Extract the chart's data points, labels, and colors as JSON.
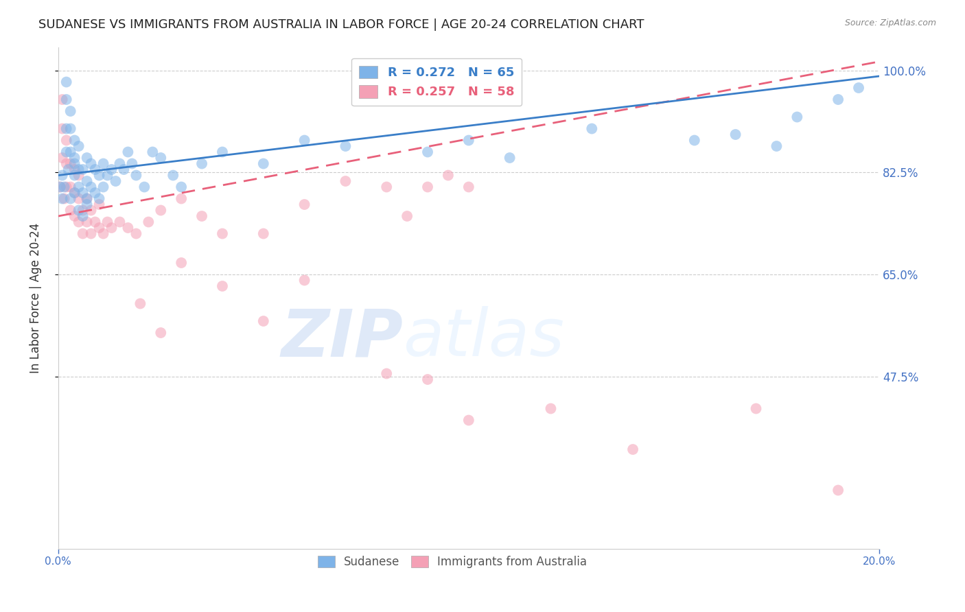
{
  "title": "SUDANESE VS IMMIGRANTS FROM AUSTRALIA IN LABOR FORCE | AGE 20-24 CORRELATION CHART",
  "source": "Source: ZipAtlas.com",
  "ylabel": "In Labor Force | Age 20-24",
  "ytick_labels": [
    "100.0%",
    "82.5%",
    "65.0%",
    "47.5%"
  ],
  "ytick_values": [
    1.0,
    0.825,
    0.65,
    0.475
  ],
  "xlim": [
    0.0,
    0.2
  ],
  "ylim": [
    0.18,
    1.04
  ],
  "blue_color": "#7EB3E8",
  "pink_color": "#F4A0B5",
  "blue_line_color": "#3A7EC8",
  "pink_line_color": "#E8607A",
  "watermark_zip": "ZIP",
  "watermark_atlas": "atlas",
  "bg_color": "#FFFFFF",
  "grid_color": "#CCCCCC",
  "title_fontsize": 13,
  "axis_label_fontsize": 12,
  "tick_fontsize": 11,
  "right_tick_color": "#4472C4",
  "bottom_tick_color": "#4472C4",
  "blue_trend_x": [
    0.0,
    0.2
  ],
  "blue_trend_y": [
    0.82,
    0.99
  ],
  "pink_trend_x": [
    0.0,
    0.2
  ],
  "pink_trend_y": [
    0.75,
    1.015
  ],
  "blue_scatter_x": [
    0.0005,
    0.001,
    0.001,
    0.0015,
    0.002,
    0.002,
    0.002,
    0.002,
    0.0025,
    0.003,
    0.003,
    0.003,
    0.003,
    0.004,
    0.004,
    0.004,
    0.004,
    0.004,
    0.005,
    0.005,
    0.005,
    0.005,
    0.006,
    0.006,
    0.006,
    0.007,
    0.007,
    0.007,
    0.007,
    0.008,
    0.008,
    0.009,
    0.009,
    0.01,
    0.01,
    0.011,
    0.011,
    0.012,
    0.013,
    0.014,
    0.015,
    0.016,
    0.017,
    0.018,
    0.019,
    0.021,
    0.023,
    0.025,
    0.028,
    0.03,
    0.035,
    0.04,
    0.05,
    0.06,
    0.07,
    0.09,
    0.1,
    0.11,
    0.13,
    0.155,
    0.165,
    0.175,
    0.18,
    0.19,
    0.195
  ],
  "blue_scatter_y": [
    0.8,
    0.82,
    0.78,
    0.8,
    0.86,
    0.9,
    0.95,
    0.98,
    0.83,
    0.86,
    0.9,
    0.93,
    0.78,
    0.82,
    0.85,
    0.88,
    0.79,
    0.84,
    0.76,
    0.8,
    0.83,
    0.87,
    0.75,
    0.79,
    0.83,
    0.77,
    0.81,
    0.85,
    0.78,
    0.8,
    0.84,
    0.79,
    0.83,
    0.78,
    0.82,
    0.8,
    0.84,
    0.82,
    0.83,
    0.81,
    0.84,
    0.83,
    0.86,
    0.84,
    0.82,
    0.8,
    0.86,
    0.85,
    0.82,
    0.8,
    0.84,
    0.86,
    0.84,
    0.88,
    0.87,
    0.86,
    0.88,
    0.85,
    0.9,
    0.88,
    0.89,
    0.87,
    0.92,
    0.95,
    0.97
  ],
  "pink_scatter_x": [
    0.0005,
    0.001,
    0.001,
    0.001,
    0.0015,
    0.002,
    0.002,
    0.002,
    0.003,
    0.003,
    0.003,
    0.004,
    0.004,
    0.004,
    0.005,
    0.005,
    0.005,
    0.006,
    0.006,
    0.007,
    0.007,
    0.008,
    0.008,
    0.009,
    0.01,
    0.01,
    0.011,
    0.012,
    0.013,
    0.015,
    0.017,
    0.019,
    0.022,
    0.025,
    0.03,
    0.035,
    0.04,
    0.05,
    0.06,
    0.07,
    0.08,
    0.085,
    0.09,
    0.095,
    0.1,
    0.02,
    0.025,
    0.03,
    0.04,
    0.05,
    0.06,
    0.08,
    0.09,
    0.1,
    0.12,
    0.14,
    0.17,
    0.19
  ],
  "pink_scatter_y": [
    0.8,
    0.85,
    0.9,
    0.95,
    0.78,
    0.8,
    0.84,
    0.88,
    0.76,
    0.8,
    0.84,
    0.75,
    0.79,
    0.83,
    0.74,
    0.78,
    0.82,
    0.72,
    0.76,
    0.74,
    0.78,
    0.72,
    0.76,
    0.74,
    0.73,
    0.77,
    0.72,
    0.74,
    0.73,
    0.74,
    0.73,
    0.72,
    0.74,
    0.76,
    0.78,
    0.75,
    0.72,
    0.72,
    0.77,
    0.81,
    0.8,
    0.75,
    0.8,
    0.82,
    0.8,
    0.6,
    0.55,
    0.67,
    0.63,
    0.57,
    0.64,
    0.48,
    0.47,
    0.4,
    0.42,
    0.35,
    0.42,
    0.28
  ]
}
